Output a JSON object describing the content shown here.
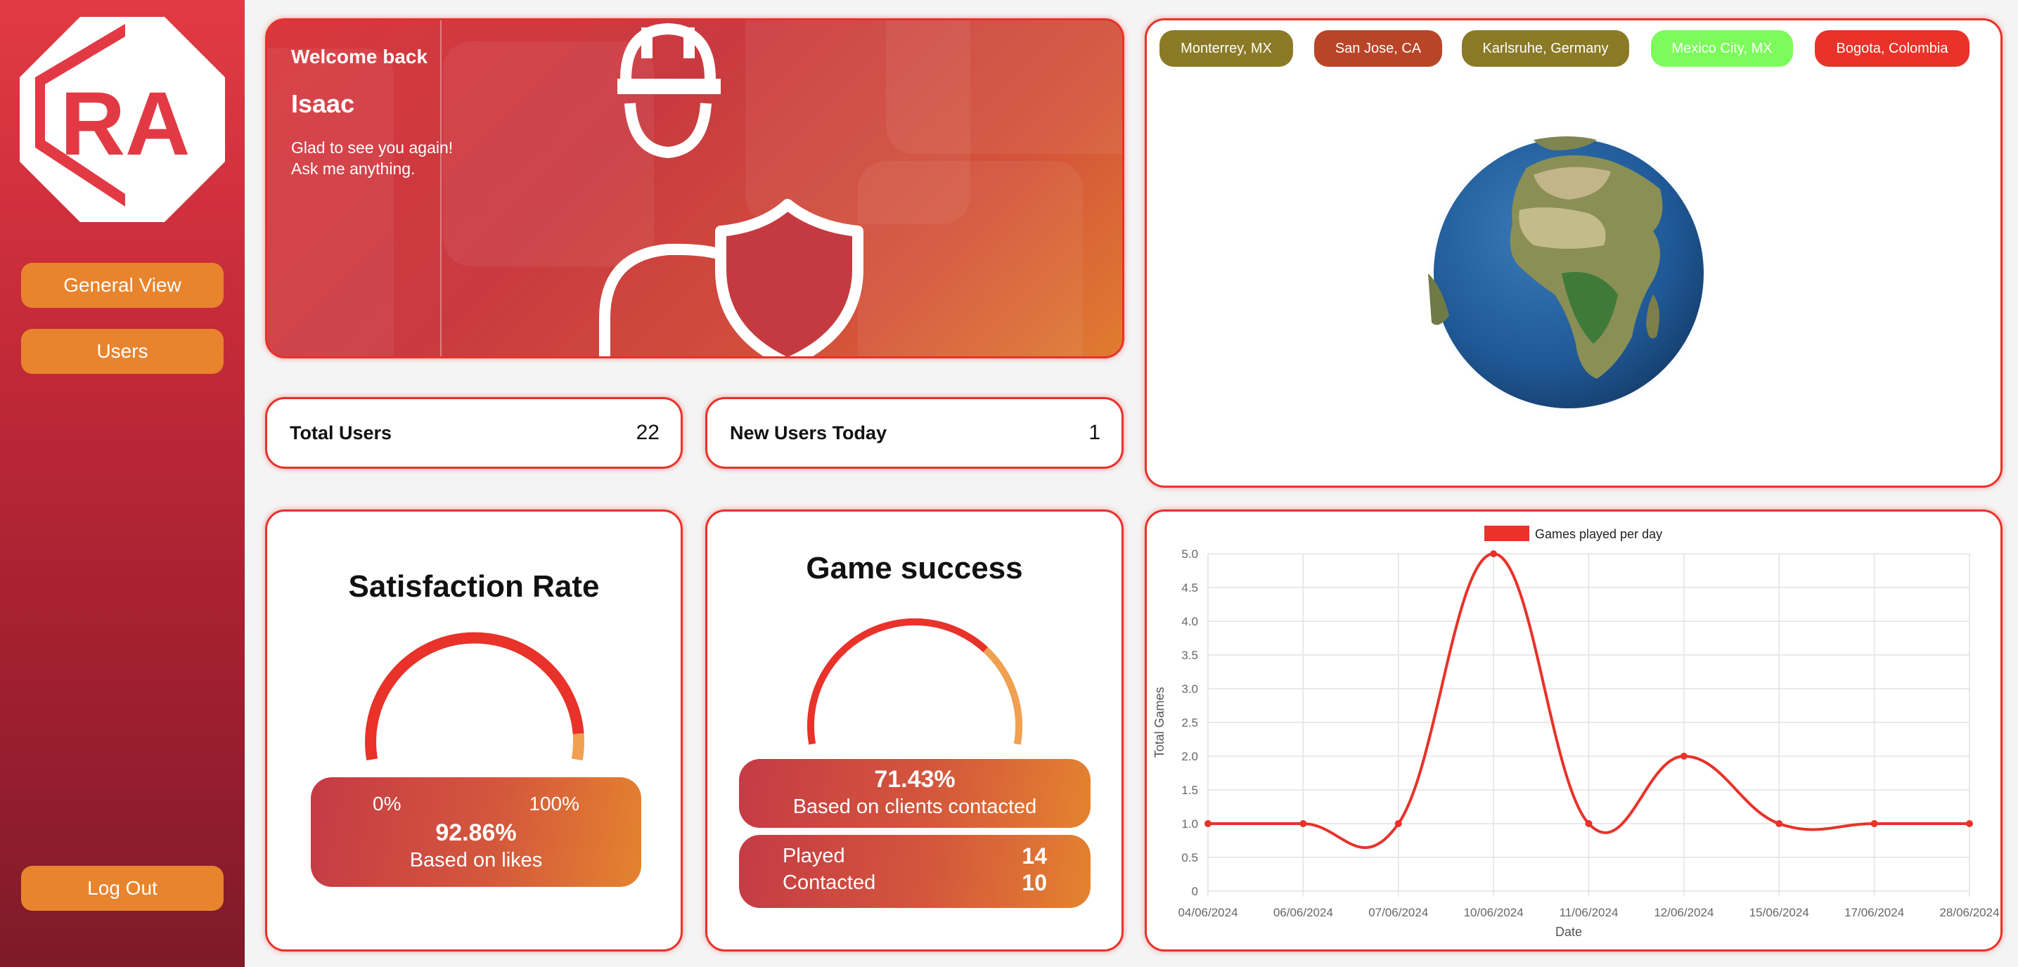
{
  "sidebar": {
    "logo_text": "RA",
    "nav": [
      {
        "label": "General View"
      },
      {
        "label": "Users"
      }
    ],
    "logout_label": "Log Out"
  },
  "welcome": {
    "title": "Welcome back",
    "name": "Isaac",
    "message_line1": "Glad to see you again!",
    "message_line2": "Ask me anything."
  },
  "stats": {
    "total_users_label": "Total Users",
    "total_users_value": "22",
    "new_users_label": "New Users Today",
    "new_users_value": "1"
  },
  "satisfaction": {
    "title": "Satisfaction Rate",
    "min_label": "0%",
    "max_label": "100%",
    "value_label": "92.86%",
    "value": 0.9286,
    "caption": "Based on likes",
    "colors": {
      "fill": "#e8322a",
      "rest": "#f0a050"
    }
  },
  "game_success": {
    "title": "Game success",
    "value_label": "71.43%",
    "value": 0.7143,
    "caption": "Based on clients contacted",
    "played_label": "Played",
    "played_value": "14",
    "contacted_label": "Contacted",
    "contacted_value": "10"
  },
  "locations": [
    {
      "label": "Monterrey, MX",
      "color": "#8a7a26"
    },
    {
      "label": "San Jose, CA",
      "color": "#b84528"
    },
    {
      "label": "Karlsruhe, Germany",
      "color": "#8a7a26"
    },
    {
      "label": "Mexico City, MX",
      "color": "#7cfc5a"
    },
    {
      "label": "Bogota, Colombia",
      "color": "#e8322a"
    }
  ],
  "chart_data": {
    "type": "line",
    "legend": "Games played per day",
    "legend_position": "top-center",
    "xlabel": "Date",
    "ylabel": "Total Games",
    "categories": [
      "04/06/2024",
      "06/06/2024",
      "07/06/2024",
      "10/06/2024",
      "11/06/2024",
      "12/06/2024",
      "15/06/2024",
      "17/06/2024",
      "28/06/2024"
    ],
    "series": [
      {
        "name": "Games played per day",
        "values": [
          1,
          1,
          1,
          5,
          1,
          2,
          1,
          1,
          1
        ]
      }
    ],
    "ylim": [
      0,
      5
    ],
    "yticks": [
      "0",
      "0.5",
      "1.0",
      "1.5",
      "2.0",
      "2.5",
      "3.0",
      "3.5",
      "4.0",
      "4.5",
      "5.0"
    ],
    "grid": true,
    "color": "#e8322a"
  }
}
